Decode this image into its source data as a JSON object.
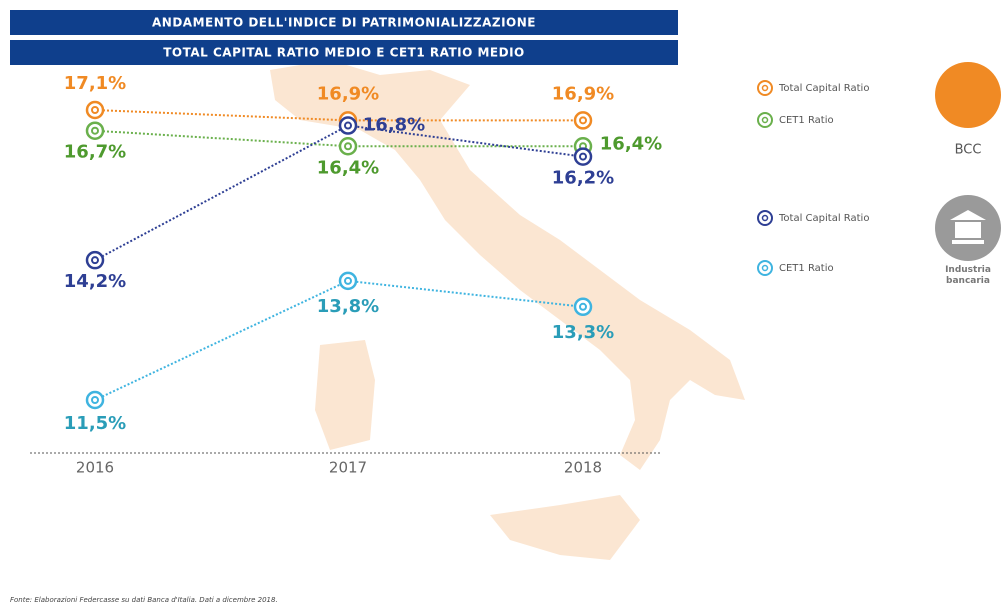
{
  "chart_data": {
    "type": "line",
    "title": "ANDAMENTO DELL'INDICE DI PATRIMONIALIZZAZIONE",
    "subtitle": "TOTAL CAPITAL RATIO MEDIO E CET1 RATIO MEDIO",
    "categories": [
      "2016",
      "2017",
      "2018"
    ],
    "series": [
      {
        "name": "Total Capital Ratio",
        "group": "BCC",
        "color": "#f08a24",
        "values": [
          17.1,
          16.9,
          16.9
        ],
        "value_labels": [
          "17,1%",
          "16,9%",
          "16,9%"
        ]
      },
      {
        "name": "CET1 Ratio",
        "group": "BCC",
        "color": "#6ab04c",
        "values": [
          16.7,
          16.4,
          16.4
        ],
        "value_labels": [
          "16,7%",
          "16,4%",
          "16,4%"
        ]
      },
      {
        "name": "Total Capital Ratio",
        "group": "Industria bancaria",
        "color": "#2e3f94",
        "values": [
          14.2,
          16.8,
          16.2
        ],
        "value_labels": [
          "14,2%",
          "16,8%",
          "16,2%"
        ]
      },
      {
        "name": "CET1 Ratio",
        "group": "Industria bancaria",
        "color": "#3fb4e0",
        "values": [
          11.5,
          13.8,
          13.3
        ],
        "value_labels": [
          "11,5%",
          "13,8%",
          "13,3%"
        ]
      }
    ],
    "source": "Fonte: Elaborazioni Federcasse su dati Banca d'Italia. Dati a dicembre 2018."
  }
}
